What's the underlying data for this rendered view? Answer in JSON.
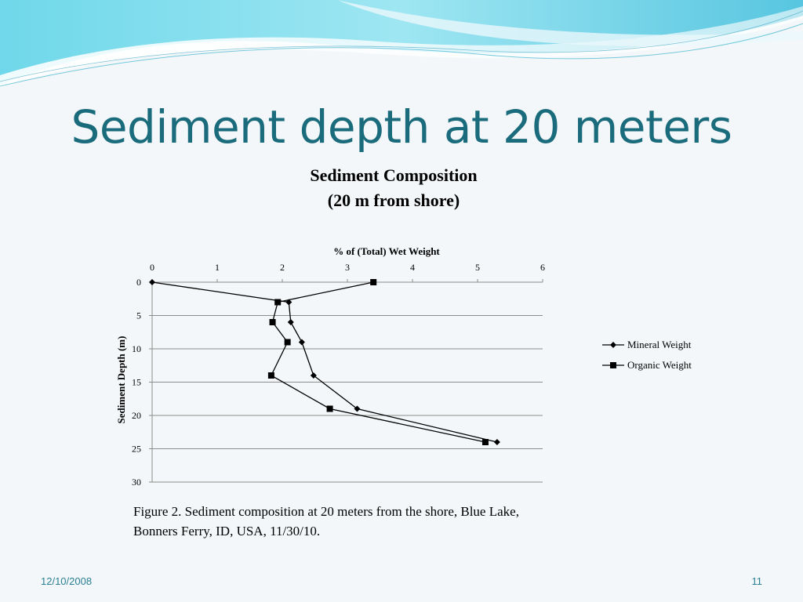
{
  "slide": {
    "title": "Sediment depth at 20 meters",
    "caption_line1": "Figure 2. Sediment composition at 20 meters from the shore, Blue Lake,",
    "caption_line2": "Bonners Ferry, ID, USA, 11/30/10.",
    "date": "12/10/2008",
    "page_number": "11"
  },
  "chart_data": {
    "type": "line",
    "title_line1": "Sediment Composition",
    "title_line2": "(20 m from shore)",
    "xlabel": "% of (Total) Wet Weight",
    "ylabel": "Sediment Depth (m)",
    "x_axis_position": "top",
    "y_axis_inverted": true,
    "xlim": [
      0,
      6
    ],
    "ylim": [
      0,
      30
    ],
    "x_ticks": [
      "0",
      "1",
      "2",
      "3",
      "4",
      "5",
      "6"
    ],
    "y_ticks": [
      "0",
      "5",
      "10",
      "15",
      "20",
      "25",
      "30"
    ],
    "grid": "horizontal",
    "legend_position": "right",
    "series": [
      {
        "name": "Mineral Weight",
        "marker": "diamond",
        "color": "#000000",
        "points": [
          {
            "x": 0.0,
            "y": 0
          },
          {
            "x": 2.1,
            "y": 3
          },
          {
            "x": 2.13,
            "y": 6
          },
          {
            "x": 2.3,
            "y": 9
          },
          {
            "x": 2.48,
            "y": 14
          },
          {
            "x": 3.15,
            "y": 19
          },
          {
            "x": 5.3,
            "y": 24
          }
        ]
      },
      {
        "name": "Organic Weight",
        "marker": "square",
        "color": "#000000",
        "points": [
          {
            "x": 3.4,
            "y": 0
          },
          {
            "x": 1.93,
            "y": 3
          },
          {
            "x": 1.85,
            "y": 6
          },
          {
            "x": 2.08,
            "y": 9
          },
          {
            "x": 1.83,
            "y": 14
          },
          {
            "x": 2.73,
            "y": 19
          },
          {
            "x": 5.12,
            "y": 24
          }
        ]
      }
    ]
  }
}
